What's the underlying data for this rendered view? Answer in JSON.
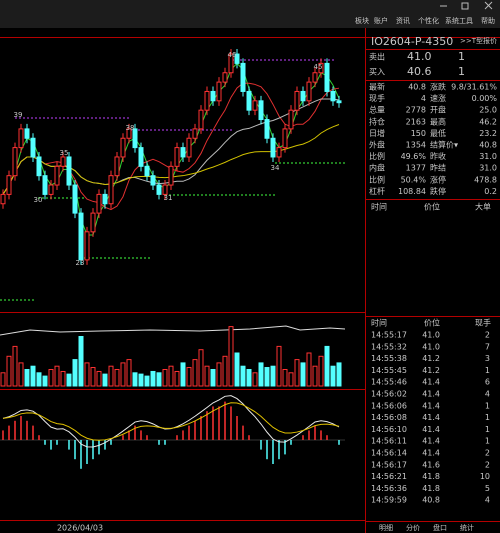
{
  "menu": [
    "板块",
    "账户",
    "资讯",
    "个性化",
    "系统工具",
    "帮助"
  ],
  "quote": {
    "contract": "IO2604-P-4350",
    "t_quote": ">>T型报价",
    "ask": [
      "卖出",
      "41.0",
      "1"
    ],
    "bid": [
      "买入",
      "40.6",
      "1"
    ],
    "rows": [
      [
        "最新",
        "40.8",
        "涨跌",
        "9.8/31.61%"
      ],
      [
        "现手",
        "4",
        "速涨",
        "0.00%"
      ],
      [
        "总量",
        "2778",
        "开盘",
        "25.0"
      ],
      [
        "持仓",
        "2163",
        "最高",
        "46.2"
      ],
      [
        "日增",
        "150",
        "最低",
        "23.2"
      ],
      [
        "外盘",
        "1354",
        "结算价▾",
        "40.8"
      ],
      [
        "比例",
        "49.6%",
        "昨收",
        "31.0"
      ],
      [
        "内盘",
        "1377",
        "昨结",
        "31.0"
      ],
      [
        "比例",
        "50.4%",
        "涨停",
        "478.8"
      ],
      [
        "杠杆",
        "108.84",
        "跌停",
        "0.2"
      ]
    ],
    "big_order_header": [
      "时间",
      "价位",
      "大单"
    ]
  },
  "ticks": {
    "header": [
      "时间",
      "价位",
      "现手"
    ],
    "rows": [
      [
        "14:55:17",
        "41.0",
        "2"
      ],
      [
        "14:55:32",
        "41.0",
        "7"
      ],
      [
        "14:55:38",
        "41.2",
        "3"
      ],
      [
        "14:55:45",
        "41.2",
        "1"
      ],
      [
        "14:55:46",
        "41.4",
        "6"
      ],
      [
        "14:56:02",
        "41.4",
        "4"
      ],
      [
        "14:56:06",
        "41.4",
        "1"
      ],
      [
        "14:56:08",
        "41.4",
        "1"
      ],
      [
        "14:56:10",
        "41.4",
        "1"
      ],
      [
        "14:56:11",
        "41.4",
        "1"
      ],
      [
        "14:56:14",
        "41.4",
        "2"
      ],
      [
        "14:56:17",
        "41.6",
        "2"
      ],
      [
        "14:56:21",
        "41.8",
        "10"
      ],
      [
        "14:56:36",
        "41.8",
        "5"
      ],
      [
        "14:59:59",
        "40.8",
        "4"
      ]
    ]
  },
  "tabs": [
    "明细",
    "分价",
    "盘口",
    "统计"
  ],
  "chart": {
    "date_label": "2026/04/03",
    "annotations": [
      "46",
      "45",
      "39",
      "38",
      "35",
      "30",
      "31",
      "34",
      "23"
    ],
    "price_ylim": [
      19.5,
      47.5
    ],
    "closes": [
      31,
      33,
      36,
      38,
      37,
      35,
      33,
      31,
      32,
      34,
      35,
      32,
      29,
      24,
      27,
      29,
      31,
      30,
      33,
      35,
      37,
      38,
      36,
      34,
      33,
      32,
      31,
      32,
      34,
      36,
      35,
      37,
      38,
      40,
      42,
      41,
      43,
      44,
      46,
      45,
      42,
      40,
      41,
      39,
      37,
      35,
      36,
      38,
      40,
      42,
      41,
      43,
      44,
      45,
      42,
      41,
      40.8
    ],
    "volume_ylim": [
      0,
      100
    ],
    "volume": [
      20,
      45,
      60,
      35,
      25,
      30,
      20,
      15,
      25,
      30,
      22,
      18,
      40,
      75,
      35,
      28,
      22,
      18,
      30,
      25,
      35,
      40,
      20,
      18,
      15,
      22,
      20,
      25,
      30,
      22,
      35,
      28,
      40,
      55,
      30,
      25,
      35,
      45,
      90,
      50,
      30,
      25,
      20,
      35,
      28,
      30,
      60,
      25,
      20,
      40,
      35,
      50,
      30,
      45,
      60,
      30,
      35
    ],
    "macd_ylim": [
      -10,
      10
    ],
    "macd": [
      2,
      3,
      4,
      5,
      4,
      3,
      1,
      -1,
      -2,
      -1,
      0,
      -2,
      -4,
      -6,
      -5,
      -4,
      -3,
      -2,
      -1,
      0,
      1,
      2,
      3,
      2,
      1,
      0,
      -1,
      -1,
      0,
      1,
      2,
      3,
      4,
      5,
      6,
      7,
      7,
      8,
      7,
      5,
      3,
      1,
      0,
      -2,
      -4,
      -5,
      -4,
      -3,
      -1,
      0,
      1,
      2,
      3,
      2,
      1,
      0,
      -1
    ]
  }
}
